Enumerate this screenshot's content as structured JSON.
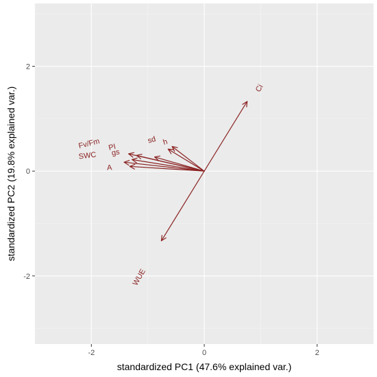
{
  "chart_data": {
    "type": "scatter",
    "subtype": "pca-biplot",
    "title": "",
    "xlabel": "standardized PC1 (47.6% explained var.)",
    "ylabel": "standardized PC2 (19.8% explained var.)",
    "xlim": [
      -3.0,
      3.0
    ],
    "ylim": [
      -3.3,
      3.2
    ],
    "xticks": [
      -2,
      0,
      2
    ],
    "xtick_labels": [
      "-2",
      "0",
      "2"
    ],
    "yticks": [
      -2,
      0,
      2
    ],
    "ytick_labels": [
      "-2",
      "0",
      "2"
    ],
    "grid": true,
    "background": "#ebebeb",
    "arrow_color": "#8b2323",
    "vectors": [
      {
        "name": "Ci",
        "x": 0.76,
        "y": 1.33
      },
      {
        "name": "WUE",
        "x": -0.76,
        "y": -1.33
      },
      {
        "name": "Fv/Fm",
        "x": -1.34,
        "y": 0.33
      },
      {
        "name": "PI",
        "x": -1.2,
        "y": 0.3
      },
      {
        "name": "gs",
        "x": -1.28,
        "y": 0.22
      },
      {
        "name": "SWC",
        "x": -1.42,
        "y": 0.17
      },
      {
        "name": "A",
        "x": -1.32,
        "y": 0.09
      },
      {
        "name": "sd",
        "x": -0.88,
        "y": 0.27
      },
      {
        "name": "h",
        "x": -0.57,
        "y": 0.47
      },
      {
        "name": "",
        "x": -0.64,
        "y": 0.42
      }
    ],
    "labels": [
      {
        "text": "Ci",
        "x": 0.98,
        "y": 1.58,
        "angle": -60
      },
      {
        "text": "WUE",
        "x": -1.15,
        "y": -2.03,
        "angle": -60
      },
      {
        "text": "Fv/Fm",
        "x": -2.04,
        "y": 0.52,
        "angle": -14
      },
      {
        "text": "PI",
        "x": -1.63,
        "y": 0.45,
        "angle": -14
      },
      {
        "text": "gs",
        "x": -1.57,
        "y": 0.35,
        "angle": -10
      },
      {
        "text": "SWC",
        "x": -2.07,
        "y": 0.29,
        "angle": -7
      },
      {
        "text": "A",
        "x": -1.68,
        "y": 0.06,
        "angle": -4
      },
      {
        "text": "sd",
        "x": -0.93,
        "y": 0.59,
        "angle": -17
      },
      {
        "text": "h",
        "x": -0.69,
        "y": 0.55,
        "angle": -17
      }
    ]
  }
}
